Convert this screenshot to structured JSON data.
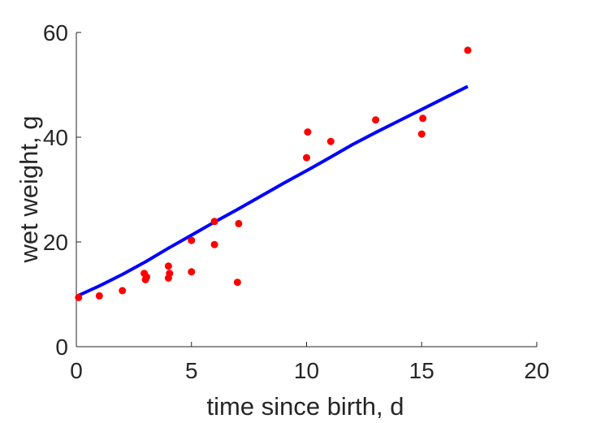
{
  "chart_data": {
    "type": "scatter",
    "title": "",
    "xlabel": "time since birth, d",
    "ylabel": "wet weight, g",
    "xlim": [
      0,
      20
    ],
    "ylim": [
      0,
      60
    ],
    "xticks": [
      0,
      5,
      10,
      15,
      20
    ],
    "yticks": [
      0,
      20,
      40,
      60
    ],
    "grid": false,
    "legend": "none",
    "colors": {
      "points": "#ff0000",
      "curve": "#0000ff",
      "axes": "#262626"
    },
    "series": [
      {
        "kind": "points",
        "x": [
          0.1,
          1,
          2,
          2.95,
          3,
          3.05,
          4,
          4,
          4.05,
          5,
          5,
          6,
          6,
          7,
          7.05,
          10,
          10.05,
          11.05,
          13,
          15,
          15.05,
          17
        ],
        "y": [
          9.4,
          9.7,
          10.7,
          14.0,
          12.8,
          13.3,
          15.4,
          13.1,
          14.0,
          20.3,
          14.3,
          23.9,
          19.5,
          12.3,
          23.5,
          36.1,
          41.0,
          39.2,
          43.3,
          40.6,
          43.6,
          56.6
        ]
      },
      {
        "kind": "line",
        "x": [
          0.1,
          1,
          2,
          3,
          4,
          5,
          6,
          7,
          8,
          9,
          10,
          11,
          12,
          13,
          14,
          15,
          16,
          17
        ],
        "y": [
          9.8,
          11.6,
          13.8,
          16.2,
          18.8,
          21.3,
          23.8,
          26.2,
          28.7,
          31.2,
          33.6,
          36.1,
          38.6,
          40.9,
          43.1,
          45.3,
          47.5,
          49.7
        ]
      }
    ]
  }
}
